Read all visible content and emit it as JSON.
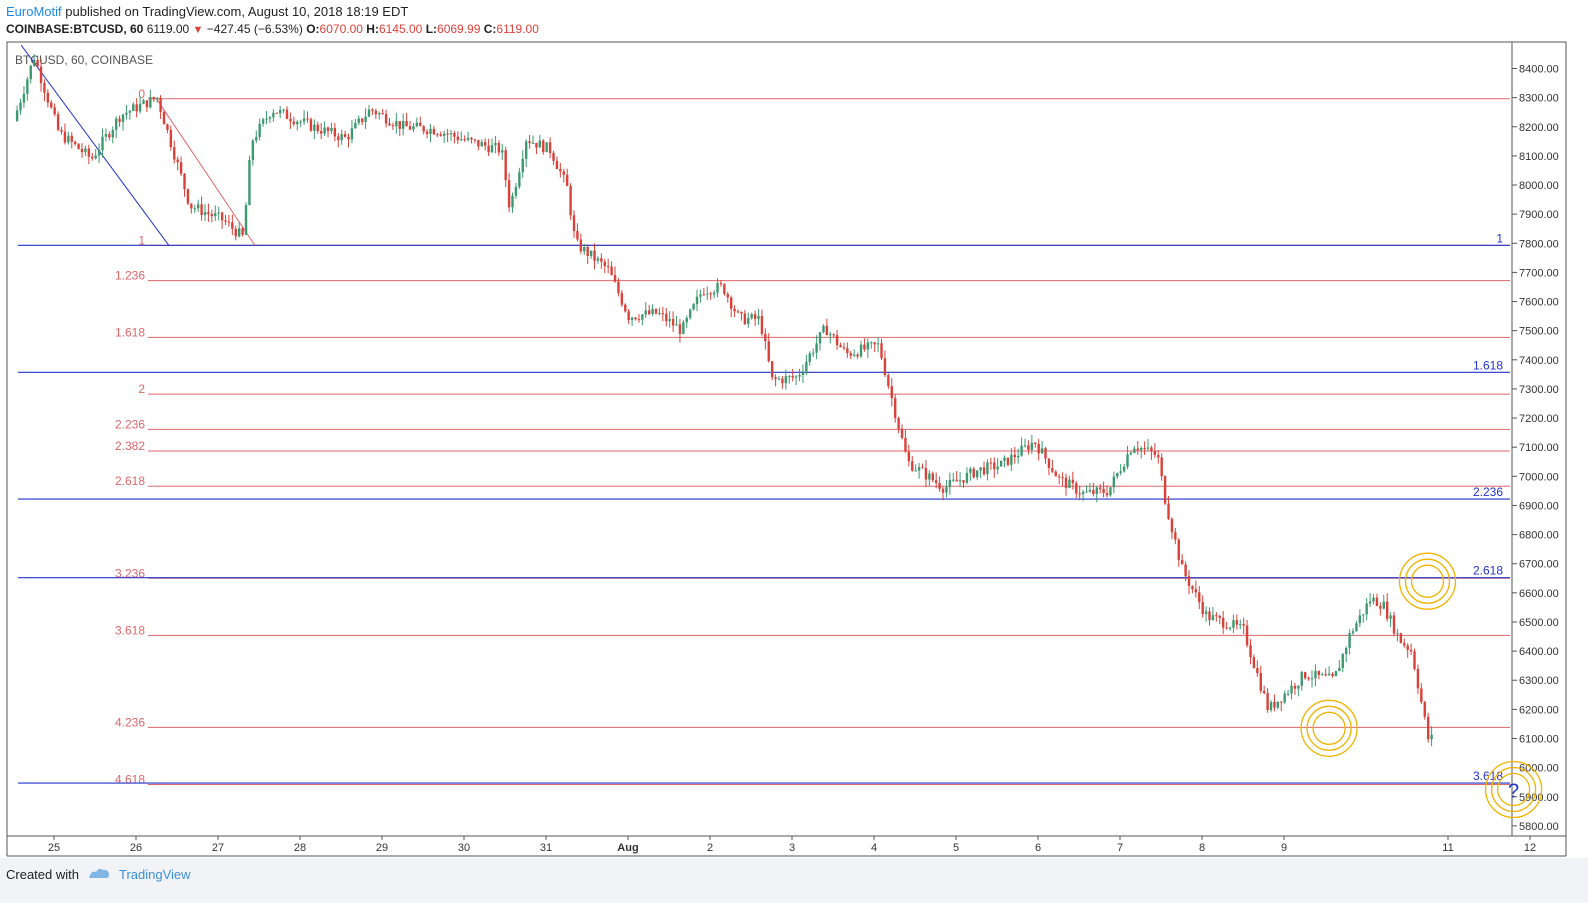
{
  "header": {
    "author": "EuroMotif",
    "published": "published on TradingView.com, August 10, 2018 18:19 EDT",
    "symbol": "COINBASE:BTCUSD, 60",
    "price": "6119.00",
    "arrow": "▼",
    "change": "−427.45 (−6.53%)",
    "o_label": "O:",
    "o_val": "6070.00",
    "h_label": "H:",
    "h_val": "6145.00",
    "l_label": "L:",
    "l_val": "6069.99",
    "c_label": "C:",
    "c_val": "6119.00"
  },
  "footer": {
    "created_with": "Created with",
    "brand": "TradingView"
  },
  "colors": {
    "up": "#3d9970",
    "down": "#d9413a",
    "fib_red": "#e0666a",
    "fib_blue": "#2233cc",
    "circle": "#f0b400"
  },
  "chart_data": {
    "type": "candlestick",
    "title": "BTCUSD, 60, COINBASE",
    "xlabel": "",
    "ylabel": "",
    "ylim": [
      5760,
      8480
    ],
    "xlim": [
      24.5,
      12.5
    ],
    "x_ticks": [
      "25",
      "26",
      "27",
      "28",
      "29",
      "30",
      "31",
      "Aug",
      "2",
      "3",
      "4",
      "5",
      "6",
      "7",
      "8",
      "9",
      "11",
      "12"
    ],
    "y_ticks": [
      5800,
      5900,
      6000,
      6100,
      6200,
      6300,
      6400,
      6500,
      6600,
      6700,
      6800,
      6900,
      7000,
      7100,
      7200,
      7300,
      7400,
      7500,
      7600,
      7700,
      7800,
      7900,
      8000,
      8100,
      8200,
      8300,
      8400
    ],
    "y_tick_labels": [
      "5800.00",
      "5900.00",
      "6000.00",
      "6100.00",
      "6200.00",
      "6300.00",
      "6400.00",
      "6500.00",
      "6600.00",
      "6700.00",
      "6800.00",
      "6900.00",
      "7000.00",
      "7100.00",
      "7200.00",
      "7300.00",
      "7400.00",
      "7500.00",
      "7600.00",
      "7700.00",
      "7800.00",
      "7900.00",
      "8000.00",
      "8100.00",
      "8200.00",
      "8300.00",
      "8400.00"
    ],
    "fib_red": [
      {
        "label": "0",
        "value": 8296
      },
      {
        "label": "1",
        "value": 7793
      },
      {
        "label": "1.236",
        "value": 7672
      },
      {
        "label": "1.618",
        "value": 7477
      },
      {
        "label": "2",
        "value": 7282
      },
      {
        "label": "2.236",
        "value": 7161
      },
      {
        "label": "2.382",
        "value": 7087
      },
      {
        "label": "2.618",
        "value": 6966
      },
      {
        "label": "3.236",
        "value": 6650
      },
      {
        "label": "3.618",
        "value": 6454
      },
      {
        "label": "4.236",
        "value": 6138
      },
      {
        "label": "4.618",
        "value": 5942
      }
    ],
    "fib_blue": [
      {
        "label": "1",
        "value": 7793
      },
      {
        "label": "1.618",
        "value": 7357
      },
      {
        "label": "2.236",
        "value": 6922
      },
      {
        "label": "2.618",
        "value": 6652
      },
      {
        "label": "3.618",
        "value": 5947
      }
    ],
    "price_path": [
      [
        24.55,
        8220
      ],
      [
        24.8,
        8440
      ],
      [
        25.1,
        8180
      ],
      [
        25.5,
        8090
      ],
      [
        25.85,
        8240
      ],
      [
        26.3,
        8300
      ],
      [
        26.7,
        7930
      ],
      [
        27.1,
        7880
      ],
      [
        27.35,
        7820
      ],
      [
        27.45,
        8150
      ],
      [
        27.7,
        8260
      ],
      [
        28.2,
        8200
      ],
      [
        28.6,
        8160
      ],
      [
        28.9,
        8260
      ],
      [
        29.3,
        8200
      ],
      [
        29.7,
        8190
      ],
      [
        30.1,
        8150
      ],
      [
        30.5,
        8120
      ],
      [
        30.6,
        7920
      ],
      [
        30.8,
        8160
      ],
      [
        31.1,
        8120
      ],
      [
        31.3,
        7990
      ],
      [
        31.4,
        7800
      ],
      [
        31.8,
        7710
      ],
      [
        32.05,
        7550
      ],
      [
        32.4,
        7560
      ],
      [
        32.7,
        7500
      ],
      [
        32.95,
        7640
      ],
      [
        33.2,
        7650
      ],
      [
        33.4,
        7540
      ],
      [
        33.65,
        7540
      ],
      [
        33.8,
        7330
      ],
      [
        34.1,
        7340
      ],
      [
        34.45,
        7510
      ],
      [
        34.7,
        7420
      ],
      [
        35.1,
        7450
      ],
      [
        35.3,
        7220
      ],
      [
        35.45,
        7050
      ],
      [
        35.9,
        6960
      ],
      [
        36.3,
        7020
      ],
      [
        36.6,
        7040
      ],
      [
        37.0,
        7120
      ],
      [
        37.3,
        6990
      ],
      [
        37.6,
        6940
      ],
      [
        37.9,
        6950
      ],
      [
        38.2,
        7110
      ],
      [
        38.5,
        7070
      ],
      [
        38.6,
        6910
      ],
      [
        38.8,
        6680
      ],
      [
        39.1,
        6520
      ],
      [
        39.4,
        6490
      ],
      [
        39.55,
        6470
      ],
      [
        39.85,
        6200
      ],
      [
        40.3,
        6320
      ],
      [
        40.65,
        6300
      ],
      [
        40.85,
        6460
      ],
      [
        41.1,
        6580
      ],
      [
        41.25,
        6560
      ],
      [
        41.45,
        6440
      ],
      [
        41.6,
        6400
      ],
      [
        41.8,
        6100
      ]
    ],
    "trendlines": [
      {
        "x1": 24.6,
        "y1": 8480,
        "x2": 26.4,
        "y2": 7793,
        "color": "blue"
      },
      {
        "x1": 26.25,
        "y1": 8296,
        "x2": 27.45,
        "y2": 7793,
        "color": "red"
      }
    ],
    "markers": [
      {
        "x": 40.55,
        "y": 6135,
        "label": ""
      },
      {
        "x": 41.75,
        "y": 6640,
        "label": ""
      },
      {
        "x": 42.8,
        "y": 5925,
        "label": "?"
      }
    ]
  }
}
